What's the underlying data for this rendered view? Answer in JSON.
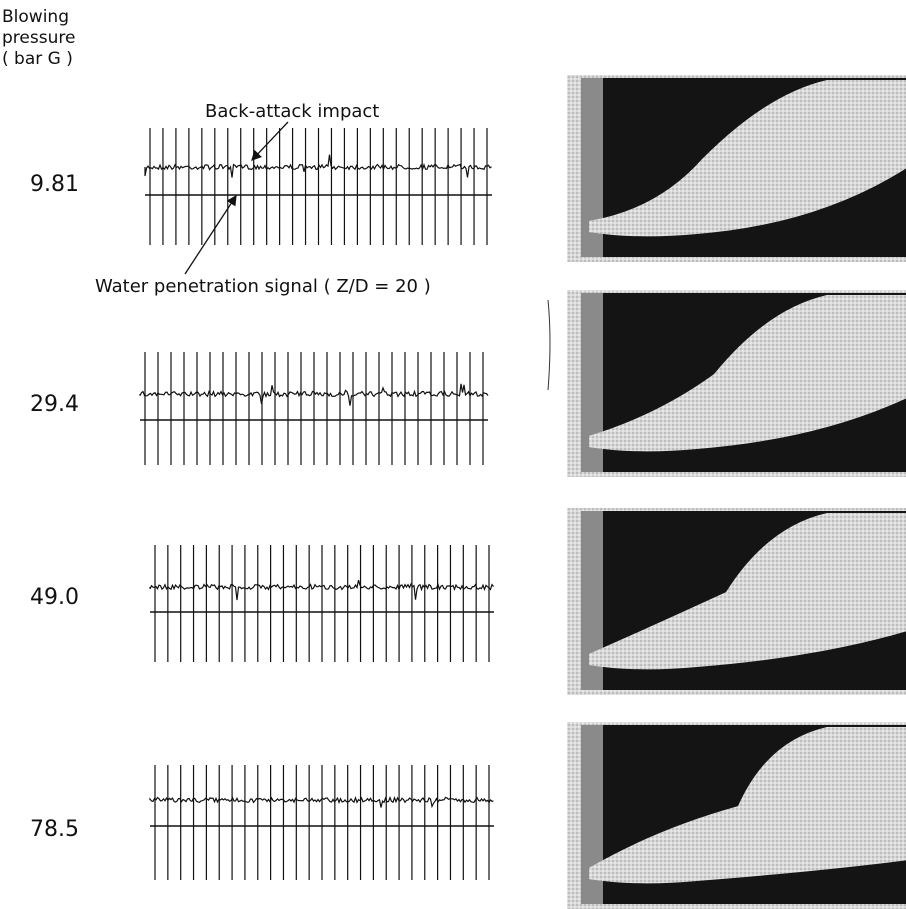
{
  "axis_label": {
    "lines": [
      "Blowing",
      "pressure",
      "( bar G )"
    ]
  },
  "annotations": {
    "back_attack": "Back-attack impact",
    "water_penetration": "Water penetration signal ( Z/D = 20 )"
  },
  "rows": [
    {
      "pressure": "9.81"
    },
    {
      "pressure": "29.4"
    },
    {
      "pressure": "49.0"
    },
    {
      "pressure": "78.5"
    }
  ]
}
